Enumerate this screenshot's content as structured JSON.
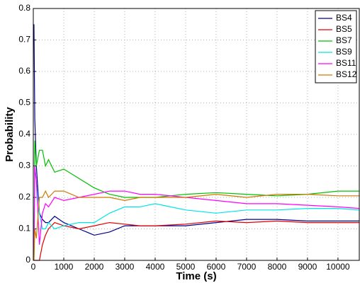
{
  "chart_data": {
    "type": "line",
    "xlabel": "Time (s)",
    "ylabel": "Probability",
    "x": [
      20,
      50,
      100,
      200,
      300,
      400,
      500,
      700,
      1000,
      1500,
      2000,
      2500,
      3000,
      3500,
      4000,
      5000,
      6000,
      7000,
      8000,
      9000,
      10000,
      10700
    ],
    "series": [
      {
        "name": "BS4",
        "color": "#00008b",
        "values": [
          0.75,
          0.45,
          0.3,
          0.15,
          0.13,
          0.12,
          0.12,
          0.14,
          0.12,
          0.1,
          0.08,
          0.09,
          0.11,
          0.11,
          0.11,
          0.11,
          0.12,
          0.13,
          0.13,
          0.125,
          0.125,
          0.125
        ]
      },
      {
        "name": "BS5",
        "color": "#e00000",
        "values": [
          0,
          0,
          0,
          0,
          0.05,
          0.08,
          0.1,
          0.12,
          0.11,
          0.1,
          0.11,
          0.12,
          0.115,
          0.11,
          0.11,
          0.115,
          0.125,
          0.12,
          0.125,
          0.12,
          0.12,
          0.12
        ]
      },
      {
        "name": "BS7",
        "color": "#00c000",
        "values": [
          0,
          0.38,
          0.3,
          0.35,
          0.35,
          0.3,
          0.32,
          0.28,
          0.29,
          0.26,
          0.23,
          0.21,
          0.2,
          0.2,
          0.2,
          0.21,
          0.215,
          0.21,
          0.205,
          0.21,
          0.22,
          0.22
        ]
      },
      {
        "name": "BS9",
        "color": "#00e5e5",
        "values": [
          0,
          0.3,
          0.25,
          0.15,
          0.1,
          0.1,
          0.12,
          0.1,
          0.11,
          0.12,
          0.12,
          0.15,
          0.17,
          0.17,
          0.18,
          0.16,
          0.15,
          0.16,
          0.16,
          0.165,
          0.165,
          0.16
        ]
      },
      {
        "name": "BS11",
        "color": "#ff00ff",
        "values": [
          0,
          0.3,
          0.25,
          0.05,
          0.15,
          0.18,
          0.17,
          0.2,
          0.19,
          0.2,
          0.21,
          0.22,
          0.22,
          0.21,
          0.21,
          0.2,
          0.19,
          0.18,
          0.18,
          0.175,
          0.17,
          0.165
        ]
      },
      {
        "name": "BS12",
        "color": "#cc7a00",
        "values": [
          0,
          0.1,
          0.07,
          0.2,
          0.2,
          0.22,
          0.2,
          0.22,
          0.22,
          0.2,
          0.2,
          0.2,
          0.19,
          0.2,
          0.2,
          0.2,
          0.21,
          0.2,
          0.21,
          0.21,
          0.205,
          0.205
        ]
      }
    ],
    "xlim": [
      0,
      10700
    ],
    "xticks": [
      0,
      1000,
      2000,
      3000,
      4000,
      5000,
      6000,
      7000,
      8000,
      9000,
      10000
    ],
    "ylim": [
      0,
      0.8
    ],
    "yticks": [
      0,
      0.1,
      0.2,
      0.3,
      0.4,
      0.5,
      0.6,
      0.7,
      0.8
    ],
    "grid": true,
    "legend": "upper right"
  }
}
